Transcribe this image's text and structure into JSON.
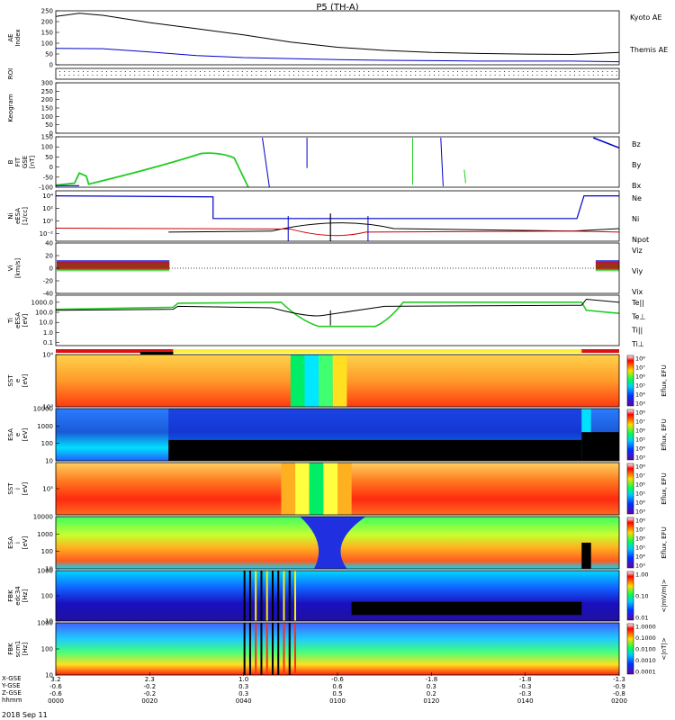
{
  "chart_data": {
    "type": "stacked-timeseries",
    "title": "P5 (TH-A)",
    "date_label": "2018 Sep 11",
    "time_axis": {
      "start_min": 0,
      "end_min": 120,
      "ticks": [
        {
          "min": 0,
          "label": "0000",
          "xgse": "3.2",
          "ygse": "-0.6",
          "zgse": "-0.6"
        },
        {
          "min": 20,
          "label": "0020",
          "xgse": "2.3",
          "ygse": "-0.2",
          "zgse": "-0.2"
        },
        {
          "min": 40,
          "label": "0040",
          "xgse": "1.0",
          "ygse": "0.3",
          "zgse": "0.3"
        },
        {
          "min": 60,
          "label": "0100",
          "xgse": "-0.6",
          "ygse": "0.6",
          "zgse": "0.5"
        },
        {
          "min": 80,
          "label": "0120",
          "xgse": "-1.8",
          "ygse": "0.3",
          "zgse": "0.2"
        },
        {
          "min": 100,
          "label": "0140",
          "xgse": "-1.8",
          "ygse": "-0.3",
          "zgse": "-0.3"
        },
        {
          "min": 120,
          "label": "0200",
          "xgse": "-1.3",
          "ygse": "-0.9",
          "zgse": "-0.8"
        }
      ],
      "row_labels": [
        "X-GSE",
        "Y-GSE",
        "Z-GSE",
        "hhmm"
      ]
    },
    "panels": [
      {
        "id": "ae",
        "ylabel": "AE Index",
        "yticks": [
          "250",
          "200",
          "150",
          "100",
          "50",
          "0"
        ],
        "series": [
          {
            "name": "Kyoto AE",
            "color": "#0000cc",
            "x": [
              0,
              10,
              20,
              30,
              40,
              50,
              60,
              70,
              80,
              90,
              100,
              110,
              120
            ],
            "y": [
              80,
              78,
              62,
              45,
              35,
              30,
              25,
              22,
              20,
              18,
              18,
              18,
              15
            ]
          },
          {
            "name": "Themis AE",
            "color": "#000000",
            "x": [
              0,
              5,
              10,
              20,
              30,
              40,
              50,
              60,
              70,
              80,
              90,
              100,
              110,
              120
            ],
            "y": [
              235,
              250,
              240,
              205,
              175,
              145,
              110,
              85,
              70,
              60,
              55,
              52,
              50,
              60
            ]
          }
        ]
      },
      {
        "id": "roi",
        "ylabel": "ROI"
      },
      {
        "id": "keogram",
        "ylabel": "Keogram",
        "yticks": [
          "300",
          "250",
          "200",
          "150",
          "100",
          "50",
          "0"
        ]
      },
      {
        "id": "bfit",
        "ylabel": "B FIT GSE [nT]",
        "yticks": [
          "150",
          "100",
          "50",
          "0",
          "-50",
          "-100"
        ],
        "legend": [
          {
            "name": "Bz",
            "color": "#cc0000"
          },
          {
            "name": "By",
            "color": "#22bb22"
          },
          {
            "name": "Bx",
            "color": "#0000cc"
          }
        ]
      },
      {
        "id": "ni",
        "ylabel": "Ni eESA [1/cc]",
        "yticks": [
          "10⁴",
          "10²",
          "10⁰",
          "10⁻²"
        ],
        "legend": [
          {
            "name": "Ne",
            "color": "#cc0000"
          },
          {
            "name": "Ni",
            "color": "#000000"
          },
          {
            "name": "Npot",
            "color": "#0000cc"
          }
        ]
      },
      {
        "id": "vi",
        "ylabel": "Vi [km/s]",
        "yticks": [
          "40",
          "20",
          "0",
          "-20",
          "-40"
        ],
        "legend": [
          {
            "name": "Viz",
            "color": "#cc0000"
          },
          {
            "name": "Viy",
            "color": "#22bb22"
          },
          {
            "name": "Vix",
            "color": "#0000cc"
          }
        ]
      },
      {
        "id": "ti",
        "ylabel": "Ti eESA [eV]",
        "yticks": [
          "1000.0",
          "100.0",
          "10.0",
          "1.0",
          "0.1"
        ],
        "legend": [
          {
            "name": "Te||",
            "color": "#000000"
          },
          {
            "name": "Te⊥",
            "color": "#cc0000"
          },
          {
            "name": "Ti||",
            "color": "#22bb22"
          },
          {
            "name": "Ti⊥",
            "color": "#0000cc"
          }
        ]
      },
      {
        "id": "sst_e",
        "ylabel": "SST e [eV]",
        "yticks": [
          "10⁴",
          "10³"
        ],
        "cbar_label": "Eflux, EFU",
        "cbar_ticks": [
          "10⁸",
          "10⁷",
          "10⁶",
          "10⁵",
          "10⁴",
          "10³"
        ]
      },
      {
        "id": "esa_e",
        "ylabel": "ESA e [eV]",
        "yticks": [
          "10000",
          "1000",
          "100",
          "10"
        ],
        "cbar_label": "Eflux, EFU",
        "cbar_ticks": [
          "10⁸",
          "10⁷",
          "10⁶",
          "10⁵",
          "10⁴",
          "10³"
        ]
      },
      {
        "id": "sst_i",
        "ylabel": "SST i [eV]",
        "yticks": [
          "10⁵"
        ],
        "cbar_label": "Eflux, EFU",
        "cbar_ticks": [
          "10⁸",
          "10⁷",
          "10⁶",
          "10⁵",
          "10⁴",
          "10³"
        ]
      },
      {
        "id": "esa_i",
        "ylabel": "ESA i [eV]",
        "yticks": [
          "10000",
          "1000",
          "100",
          "10"
        ],
        "cbar_label": "Eflux, EFU",
        "cbar_ticks": [
          "10⁸",
          "10⁷",
          "10⁶",
          "10⁵",
          "10⁴",
          "10³"
        ]
      },
      {
        "id": "fbk_e",
        "ylabel": "FBK edc34 [Hz]",
        "yticks": [
          "1000",
          "100",
          "10"
        ],
        "cbar_label": "<|mV/m|>",
        "cbar_ticks": [
          "1.00",
          "0.10",
          "0.01"
        ]
      },
      {
        "id": "fbk_b",
        "ylabel": "FBK scm1 [Hz]",
        "yticks": [
          "1000",
          "100",
          "10"
        ],
        "cbar_label": "<|nT|>",
        "cbar_ticks": [
          "1.0000",
          "0.1000",
          "0.0100",
          "0.0010",
          "0.0001"
        ]
      }
    ]
  }
}
